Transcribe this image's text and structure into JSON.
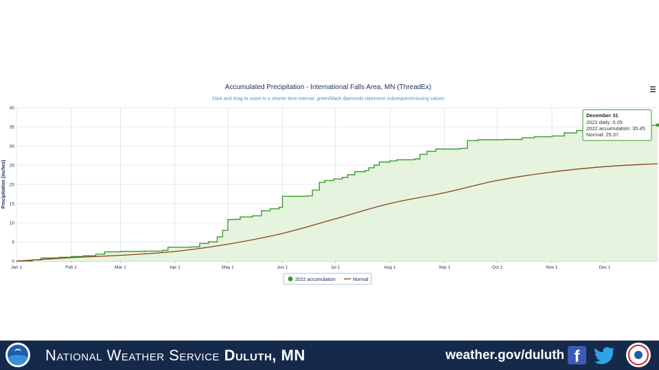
{
  "footer": {
    "org_name_prefix": "National Weather Service",
    "org_office": "Duluth, MN",
    "website": "weather.gov/duluth"
  },
  "chart_data": {
    "type": "area",
    "title": "Accumulated Precipitation - International Falls Area, MN (ThreadEx)",
    "subtitle": "Click and drag to zoom to a shorter time interval, green/black diamonds represent subsequent/missing values",
    "ylabel": "Precipitation (inches)",
    "xlabel": "",
    "ylim": [
      0,
      40
    ],
    "yticks": [
      0,
      5,
      10,
      15,
      20,
      25,
      30,
      35,
      40
    ],
    "x_domain": [
      "2022-01-01",
      "2022-12-31"
    ],
    "xticks": [
      {
        "date": "2022-01-01",
        "label": "Jan 1"
      },
      {
        "date": "2022-02-01",
        "label": "Feb 1"
      },
      {
        "date": "2022-03-01",
        "label": "Mar 1"
      },
      {
        "date": "2022-04-01",
        "label": "Apr 1"
      },
      {
        "date": "2022-05-01",
        "label": "May 1"
      },
      {
        "date": "2022-06-01",
        "label": "Jun 1"
      },
      {
        "date": "2022-07-01",
        "label": "Jul 1"
      },
      {
        "date": "2022-08-01",
        "label": "Aug 1"
      },
      {
        "date": "2022-09-01",
        "label": "Sep 1"
      },
      {
        "date": "2022-10-01",
        "label": "Oct 1"
      },
      {
        "date": "2022-11-01",
        "label": "Nov 1"
      },
      {
        "date": "2022-12-01",
        "label": "Dec 1"
      }
    ],
    "grid": true,
    "legend_position": "bottom-center",
    "colors": {
      "accumulation": "#3a9a28",
      "accumulation_fill": "#e6f3df",
      "normal": "#8b3e16"
    },
    "series": [
      {
        "name": "2022 accumulation",
        "style": "step-area",
        "points": [
          [
            "2022-01-01",
            0
          ],
          [
            "2022-01-10",
            0.3
          ],
          [
            "2022-01-15",
            0.8
          ],
          [
            "2022-01-25",
            1.0
          ],
          [
            "2022-02-01",
            1.2
          ],
          [
            "2022-02-08",
            1.4
          ],
          [
            "2022-02-15",
            1.8
          ],
          [
            "2022-02-20",
            2.4
          ],
          [
            "2022-03-01",
            2.5
          ],
          [
            "2022-03-15",
            2.6
          ],
          [
            "2022-03-25",
            2.8
          ],
          [
            "2022-03-28",
            3.6
          ],
          [
            "2022-04-10",
            3.7
          ],
          [
            "2022-04-15",
            4.6
          ],
          [
            "2022-04-20",
            5.0
          ],
          [
            "2022-04-25",
            6.3
          ],
          [
            "2022-04-28",
            8.0
          ],
          [
            "2022-05-01",
            10.8
          ],
          [
            "2022-05-05",
            10.9
          ],
          [
            "2022-05-08",
            11.5
          ],
          [
            "2022-05-15",
            11.8
          ],
          [
            "2022-05-20",
            13.1
          ],
          [
            "2022-05-25",
            13.6
          ],
          [
            "2022-05-30",
            14.0
          ],
          [
            "2022-06-01",
            16.9
          ],
          [
            "2022-06-15",
            17.0
          ],
          [
            "2022-06-18",
            18.5
          ],
          [
            "2022-06-22",
            20.5
          ],
          [
            "2022-06-25",
            21.0
          ],
          [
            "2022-06-30",
            21.4
          ],
          [
            "2022-07-05",
            21.8
          ],
          [
            "2022-07-08",
            22.5
          ],
          [
            "2022-07-12",
            23.3
          ],
          [
            "2022-07-18",
            23.6
          ],
          [
            "2022-07-20",
            24.3
          ],
          [
            "2022-07-23",
            25.0
          ],
          [
            "2022-07-26",
            25.8
          ],
          [
            "2022-08-01",
            26.1
          ],
          [
            "2022-08-05",
            26.4
          ],
          [
            "2022-08-15",
            26.6
          ],
          [
            "2022-08-18",
            27.8
          ],
          [
            "2022-08-22",
            28.6
          ],
          [
            "2022-08-27",
            29.2
          ],
          [
            "2022-09-10",
            29.4
          ],
          [
            "2022-09-14",
            31.4
          ],
          [
            "2022-09-20",
            31.6
          ],
          [
            "2022-10-05",
            31.7
          ],
          [
            "2022-10-15",
            32.1
          ],
          [
            "2022-10-22",
            32.4
          ],
          [
            "2022-11-01",
            32.6
          ],
          [
            "2022-11-08",
            33.4
          ],
          [
            "2022-11-15",
            34.0
          ],
          [
            "2022-11-20",
            34.3
          ],
          [
            "2022-11-25",
            34.5
          ],
          [
            "2022-12-05",
            34.9
          ],
          [
            "2022-12-15",
            35.1
          ],
          [
            "2022-12-25",
            35.4
          ],
          [
            "2022-12-31",
            35.45
          ]
        ]
      },
      {
        "name": "Normal",
        "style": "line",
        "points": [
          [
            "2022-01-01",
            0
          ],
          [
            "2022-02-01",
            0.9
          ],
          [
            "2022-03-01",
            1.5
          ],
          [
            "2022-04-01",
            2.5
          ],
          [
            "2022-05-01",
            4.4
          ],
          [
            "2022-06-01",
            7.2
          ],
          [
            "2022-07-01",
            11.0
          ],
          [
            "2022-08-01",
            15.0
          ],
          [
            "2022-09-01",
            17.8
          ],
          [
            "2022-10-01",
            21.0
          ],
          [
            "2022-11-01",
            23.2
          ],
          [
            "2022-12-01",
            24.6
          ],
          [
            "2022-12-31",
            25.37
          ]
        ]
      }
    ],
    "tooltip": {
      "date": "December 31",
      "lines": [
        "2022 daily: 0.05",
        "2022 accumulation: 35.45",
        "Normal: 25.37"
      ]
    }
  }
}
